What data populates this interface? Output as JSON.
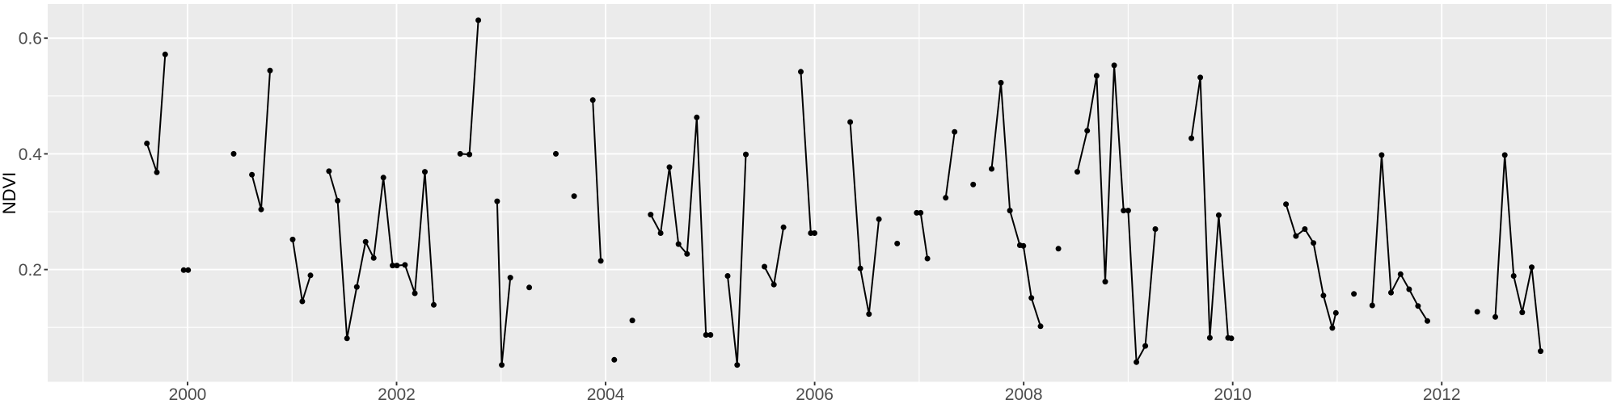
{
  "chart_data": {
    "type": "line",
    "title": "",
    "xlabel": "",
    "ylabel": "NDVI",
    "legend_position": "none",
    "grid": true,
    "xlim": [
      1998.662,
      2013.625
    ],
    "ylim": [
      0.006,
      0.659
    ],
    "x_ticks": [
      2000,
      2002,
      2004,
      2006,
      2008,
      2010,
      2012
    ],
    "x_tick_labels": [
      "2000",
      "2002",
      "2004",
      "2006",
      "2008",
      "2010",
      "2012"
    ],
    "x_minor_ticks": [
      1999,
      2001,
      2003,
      2005,
      2007,
      2009,
      2011,
      2013
    ],
    "y_ticks": [
      0.2,
      0.4,
      0.6
    ],
    "y_tick_labels": [
      "0.2",
      "0.4",
      "0.6"
    ],
    "y_minor_ticks": [
      0.1,
      0.3,
      0.5
    ],
    "colors": {
      "panel_bg": "#EBEBEB",
      "grid": "#FFFFFF",
      "line": "#000000",
      "point": "#000000",
      "tick_label": "#4D4D4D",
      "tick_mark": "#333333",
      "axis_title": "#000000",
      "outer_bg": "#FFFFFF"
    },
    "series_name": "NDVI",
    "segments": [
      [
        [
          1999.611,
          0.418
        ],
        [
          1999.706,
          0.368
        ],
        [
          1999.786,
          0.572
        ]
      ],
      [
        [
          1999.963,
          0.199
        ],
        [
          2000.006,
          0.199
        ]
      ],
      [
        [
          2000.441,
          0.4
        ]
      ],
      [
        [
          2000.616,
          0.364
        ],
        [
          2000.704,
          0.304
        ],
        [
          2000.789,
          0.544
        ]
      ],
      [
        [
          2001.006,
          0.252
        ],
        [
          2001.098,
          0.145
        ],
        [
          2001.176,
          0.19
        ]
      ],
      [
        [
          2001.353,
          0.37
        ],
        [
          2001.436,
          0.319
        ],
        [
          2001.526,
          0.081
        ],
        [
          2001.619,
          0.17
        ],
        [
          2001.704,
          0.248
        ],
        [
          2001.781,
          0.22
        ],
        [
          2001.874,
          0.359
        ],
        [
          2001.962,
          0.207
        ],
        [
          2002.003,
          0.207
        ],
        [
          2002.08,
          0.208
        ],
        [
          2002.175,
          0.159
        ],
        [
          2002.271,
          0.369
        ],
        [
          2002.356,
          0.139
        ]
      ],
      [
        [
          2002.609,
          0.4
        ],
        [
          2002.697,
          0.399
        ],
        [
          2002.782,
          0.631
        ]
      ],
      [
        [
          2002.962,
          0.318
        ],
        [
          2003.006,
          0.035
        ],
        [
          2003.088,
          0.186
        ]
      ],
      [
        [
          2003.269,
          0.169
        ]
      ],
      [
        [
          2003.524,
          0.4
        ]
      ],
      [
        [
          2003.699,
          0.327
        ]
      ],
      [
        [
          2003.877,
          0.493
        ],
        [
          2003.954,
          0.215
        ]
      ],
      [
        [
          2004.083,
          0.044
        ]
      ],
      [
        [
          2004.256,
          0.112
        ]
      ],
      [
        [
          2004.431,
          0.295
        ],
        [
          2004.526,
          0.263
        ],
        [
          2004.611,
          0.377
        ],
        [
          2004.697,
          0.244
        ],
        [
          2004.779,
          0.227
        ],
        [
          2004.872,
          0.463
        ],
        [
          2004.96,
          0.087
        ],
        [
          2005.004,
          0.087
        ]
      ],
      [
        [
          2005.168,
          0.189
        ],
        [
          2005.259,
          0.035
        ],
        [
          2005.342,
          0.399
        ]
      ],
      [
        [
          2005.52,
          0.205
        ],
        [
          2005.61,
          0.174
        ],
        [
          2005.702,
          0.273
        ]
      ],
      [
        [
          2005.868,
          0.542
        ],
        [
          2005.963,
          0.263
        ],
        [
          2005.999,
          0.263
        ]
      ],
      [
        [
          2006.34,
          0.455
        ],
        [
          2006.437,
          0.202
        ],
        [
          2006.52,
          0.123
        ],
        [
          2006.615,
          0.287
        ]
      ],
      [
        [
          2006.79,
          0.245
        ]
      ],
      [
        [
          2006.976,
          0.298
        ],
        [
          2007.014,
          0.298
        ],
        [
          2007.079,
          0.219
        ]
      ],
      [
        [
          2007.254,
          0.324
        ],
        [
          2007.339,
          0.438
        ]
      ],
      [
        [
          2007.517,
          0.347
        ]
      ],
      [
        [
          2007.693,
          0.374
        ],
        [
          2007.782,
          0.523
        ],
        [
          2007.868,
          0.302
        ],
        [
          2007.963,
          0.242
        ],
        [
          2007.997,
          0.241
        ],
        [
          2008.074,
          0.151
        ],
        [
          2008.161,
          0.102
        ]
      ],
      [
        [
          2008.332,
          0.236
        ]
      ],
      [
        [
          2008.513,
          0.369
        ],
        [
          2008.608,
          0.44
        ],
        [
          2008.698,
          0.535
        ],
        [
          2008.78,
          0.179
        ],
        [
          2008.866,
          0.553
        ],
        [
          2008.956,
          0.302
        ],
        [
          2009.0,
          0.302
        ],
        [
          2009.079,
          0.04
        ],
        [
          2009.164,
          0.068
        ],
        [
          2009.26,
          0.27
        ]
      ],
      [
        [
          2009.605,
          0.427
        ],
        [
          2009.69,
          0.532
        ],
        [
          2009.781,
          0.082
        ],
        [
          2009.866,
          0.294
        ],
        [
          2009.956,
          0.082
        ],
        [
          2009.987,
          0.081
        ]
      ],
      [
        [
          2010.51,
          0.313
        ],
        [
          2010.605,
          0.258
        ],
        [
          2010.69,
          0.27
        ],
        [
          2010.773,
          0.246
        ],
        [
          2010.868,
          0.155
        ],
        [
          2010.953,
          0.099
        ],
        [
          2010.987,
          0.125
        ]
      ],
      [
        [
          2011.16,
          0.158
        ]
      ],
      [
        [
          2011.335,
          0.138
        ],
        [
          2011.425,
          0.398
        ],
        [
          2011.515,
          0.16
        ],
        [
          2011.606,
          0.192
        ],
        [
          2011.688,
          0.166
        ],
        [
          2011.773,
          0.137
        ],
        [
          2011.863,
          0.111
        ]
      ],
      [
        [
          2012.34,
          0.127
        ]
      ],
      [
        [
          2012.513,
          0.118
        ],
        [
          2012.603,
          0.398
        ],
        [
          2012.688,
          0.189
        ],
        [
          2012.77,
          0.126
        ],
        [
          2012.861,
          0.204
        ],
        [
          2012.946,
          0.059
        ]
      ]
    ]
  }
}
